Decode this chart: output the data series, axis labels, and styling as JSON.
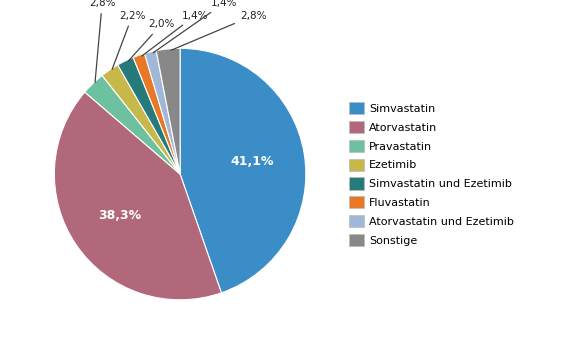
{
  "labels": [
    "Simvastatin",
    "Atorvastatin",
    "Pravastatin",
    "Ezetimib",
    "Simvastatin und Ezetimib",
    "Fluvastatin",
    "Atorvastatin und Ezetimib",
    "Sonstige"
  ],
  "values": [
    41.1,
    38.3,
    2.8,
    2.2,
    2.0,
    1.4,
    1.4,
    2.8
  ],
  "colors": [
    "#3B8DC8",
    "#B0687A",
    "#6DC0A0",
    "#C8B84A",
    "#267A7A",
    "#E87828",
    "#A0B8D8",
    "#888888"
  ],
  "pct_labels": [
    "41,1%",
    "38,3%",
    "2,8%",
    "2,2%",
    "2,0%",
    "1,4%",
    "1,4%",
    "2,8%"
  ],
  "bg_color": "#FFFFFF",
  "figsize": [
    5.81,
    3.38
  ],
  "dpi": 100,
  "startangle": 90
}
